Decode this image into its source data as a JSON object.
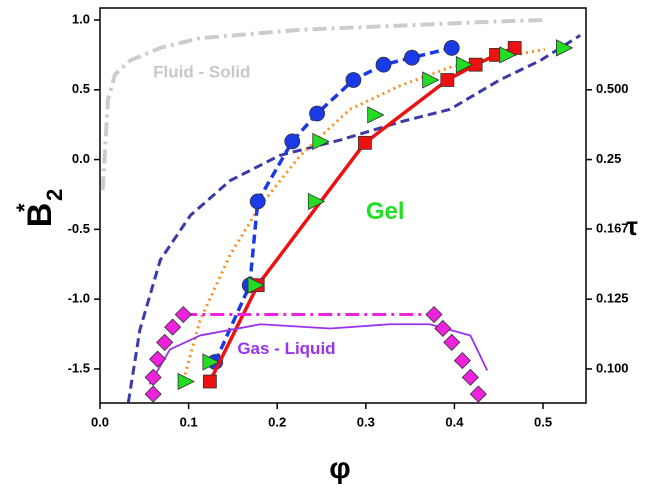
{
  "chart_data": {
    "type": "line",
    "xlabel": "φ",
    "ylabel": {
      "base": "B",
      "sup": "*",
      "sub": "2"
    },
    "y2label": "τ",
    "xlim": [
      0,
      0.5485
    ],
    "ylim": [
      -1.744,
      1.086
    ],
    "xticks": [
      {
        "value": 0,
        "label": "0.0"
      },
      0.1,
      0.2,
      0.3,
      0.4,
      0.5
    ],
    "yticks": [
      -1.5,
      {
        "value": -1,
        "label": "-1.0"
      },
      -0.5,
      {
        "value": 0,
        "label": "0.0"
      },
      0.5,
      {
        "value": 1,
        "label": "1.0"
      }
    ],
    "y2ticks": [
      {
        "value": 0.5,
        "label": "0.500"
      },
      0.25,
      0.167,
      0.125,
      {
        "value": 0.1,
        "label": "0.100"
      }
    ],
    "annotations": [
      {
        "text": "Fluid - Solid",
        "x": 0.06,
        "y": 0.62,
        "color": "#c8c8c8"
      },
      {
        "text": "Gel",
        "x": 0.3,
        "y": -0.38,
        "color": "#22e022"
      },
      {
        "text": "Gas - Liquid",
        "x": 0.155,
        "y": -1.36,
        "color": "#9933ee"
      }
    ],
    "series": [
      {
        "color": "#cccccc",
        "style": "dashdot",
        "width": 4,
        "x": [
          0.003,
          0.009,
          0.017,
          0.034,
          0.068,
          0.113,
          0.226,
          0.339,
          0.45,
          0.5
        ],
        "values": [
          -0.22,
          0.43,
          0.61,
          0.71,
          0.8,
          0.87,
          0.93,
          0.96,
          0.99,
          1.0
        ]
      },
      {
        "color": "#3a3aa8",
        "style": "dashed",
        "width": 3,
        "x": [
          0.032,
          0.045,
          0.068,
          0.102,
          0.147,
          0.203,
          0.271,
          0.339,
          0.395,
          0.451,
          0.497,
          0.542
        ],
        "values": [
          -1.74,
          -1.22,
          -0.72,
          -0.4,
          -0.15,
          0.03,
          0.14,
          0.27,
          0.36,
          0.57,
          0.71,
          0.89
        ]
      },
      {
        "color": "#ff8c1a",
        "style": "dotted",
        "width": 3,
        "x": [
          0.096,
          0.113,
          0.147,
          0.181,
          0.226,
          0.282,
          0.339,
          0.395,
          0.451,
          0.502
        ],
        "values": [
          -1.54,
          -1.15,
          -0.68,
          -0.33,
          0.03,
          0.36,
          0.53,
          0.66,
          0.73,
          0.79
        ]
      },
      {
        "color": "#1a3ae8",
        "style": "dashed",
        "width": 3.5,
        "marker": "circle",
        "x": [
          0.13,
          0.169,
          0.178,
          0.217,
          0.245,
          0.286,
          0.32,
          0.352,
          0.397
        ],
        "values": [
          -1.45,
          -0.9,
          -0.3,
          0.13,
          0.33,
          0.57,
          0.68,
          0.73,
          0.8
        ]
      },
      {
        "color": "#ee1111",
        "style": "solid",
        "width": 3.5,
        "marker": "square",
        "x": [
          0.124,
          0.178,
          0.299,
          0.392,
          0.424,
          0.447,
          0.468
        ],
        "values": [
          -1.59,
          -0.9,
          0.12,
          0.57,
          0.68,
          0.75,
          0.8
        ]
      },
      {
        "color": "#22dd22",
        "style": "none",
        "width": 0,
        "marker": "triangle",
        "x": [
          0.096,
          0.124,
          0.175,
          0.243,
          0.248,
          0.31,
          0.372,
          0.41,
          0.459,
          0.523
        ],
        "values": [
          -1.59,
          -1.45,
          -0.9,
          -0.3,
          0.13,
          0.32,
          0.57,
          0.68,
          0.75,
          0.8
        ]
      },
      {
        "color": "#9933ee",
        "style": "solid",
        "width": 1.8,
        "x": [
          0.056,
          0.079,
          0.113,
          0.181,
          0.26,
          0.327,
          0.372,
          0.418,
          0.437
        ],
        "values": [
          -1.61,
          -1.36,
          -1.26,
          -1.18,
          -1.21,
          -1.18,
          -1.18,
          -1.26,
          -1.51
        ]
      },
      {
        "color": "#ee22dd",
        "style": "dashdot",
        "width": 3,
        "x": [
          0.094,
          0.377
        ],
        "values": [
          -1.11,
          -1.11
        ]
      },
      {
        "color": "#ee22dd",
        "style": "none",
        "width": 0,
        "marker": "diamond",
        "x": [
          0.06,
          0.06,
          0.065,
          0.073,
          0.082,
          0.094,
          0.377,
          0.387,
          0.397,
          0.409,
          0.418,
          0.427
        ],
        "values": [
          -1.68,
          -1.56,
          -1.43,
          -1.31,
          -1.2,
          -1.11,
          -1.11,
          -1.21,
          -1.31,
          -1.44,
          -1.56,
          -1.68
        ]
      }
    ]
  }
}
